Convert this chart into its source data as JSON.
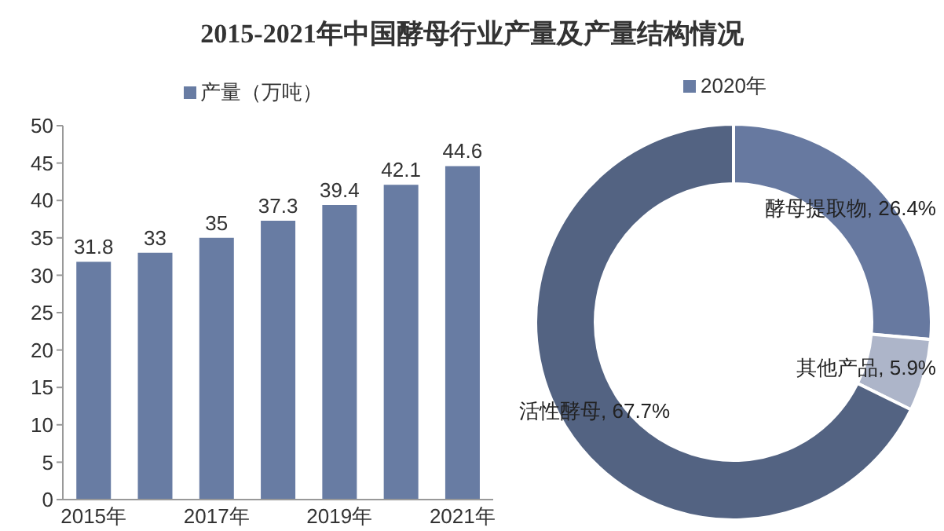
{
  "chart_data": [
    {
      "type": "bar",
      "title": "2015-2021年中国酵母行业产量及产量结构情况",
      "categories": [
        "2015年",
        null,
        "2017年",
        null,
        "2019年",
        null,
        "2021年"
      ],
      "series": [
        {
          "name": "产量（万吨）",
          "color": "#687ca3",
          "values": [
            31.8,
            33,
            35,
            37.3,
            39.4,
            42.1,
            44.6
          ]
        }
      ],
      "ylim": [
        0,
        50
      ],
      "yticks": [
        0,
        5,
        10,
        15,
        20,
        25,
        30,
        35,
        40,
        45,
        50
      ],
      "grid": false,
      "legend": "top",
      "data_labels": true
    },
    {
      "type": "donut",
      "categories": [
        "酵母提取物",
        "其他产品",
        "活性酵母"
      ],
      "value_labels": [
        ", 26.4%",
        ", 5.9%",
        ", 67.7%"
      ],
      "colors": [
        "#6779a0",
        "#adb5c9",
        "#536382"
      ],
      "series": [
        {
          "name": "2020年",
          "color": "#687ca3",
          "values": [
            26.4,
            5.9,
            67.7
          ]
        }
      ],
      "legend": "top"
    }
  ]
}
